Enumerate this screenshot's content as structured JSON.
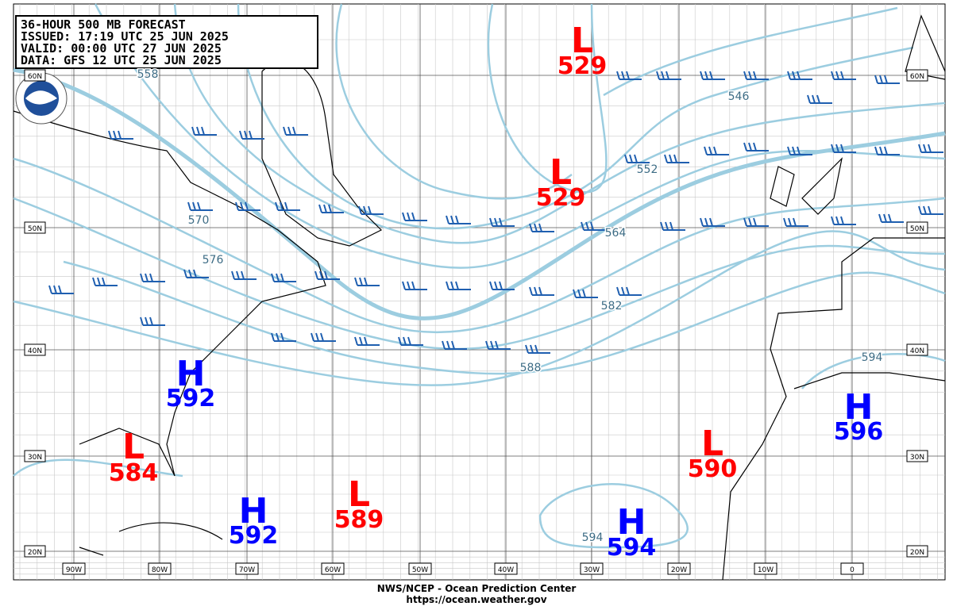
{
  "header": {
    "lines": [
      "36-HOUR 500 MB FORECAST",
      "ISSUED: 17:19 UTC 25 JUN 2025",
      "VALID:  00:00 UTC 27 JUN 2025",
      "DATA:   GFS 12 UTC 25 JUN 2025"
    ]
  },
  "centers": [
    {
      "symbol": "L",
      "value": 529
    },
    {
      "symbol": "L",
      "value": 529
    },
    {
      "symbol": "L",
      "value": 584
    },
    {
      "symbol": "L",
      "value": 589
    },
    {
      "symbol": "L",
      "value": 590
    },
    {
      "symbol": "H",
      "value": 592
    },
    {
      "symbol": "H",
      "value": 592
    },
    {
      "symbol": "H",
      "value": 594
    },
    {
      "symbol": "H",
      "value": 596
    }
  ],
  "contour_labels": [
    558,
    546,
    552,
    570,
    576,
    564,
    582,
    588,
    594,
    594
  ],
  "lat_labels": [
    "60N",
    "50N",
    "40N",
    "30N",
    "20N"
  ],
  "lon_labels": [
    "90W",
    "80W",
    "70W",
    "60W",
    "50W",
    "40W",
    "30W",
    "20W",
    "10W",
    "0"
  ],
  "footer": {
    "agency": "NWS/NCEP - Ocean Prediction Center",
    "url": "https://ocean.weather.gov"
  }
}
